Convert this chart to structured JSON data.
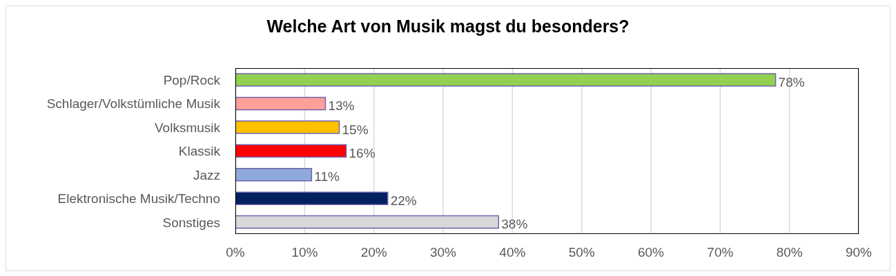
{
  "chart_data": {
    "type": "bar",
    "orientation": "horizontal",
    "title": "Welche Art von Musik magst du besonders?",
    "categories": [
      "Pop/Rock",
      "Schlager/Volkstümliche Musik",
      "Volksmusik",
      "Klassik",
      "Jazz",
      "Elektronische Musik/Techno",
      "Sonstiges"
    ],
    "values": [
      78,
      13,
      15,
      16,
      11,
      22,
      38
    ],
    "colors": [
      "#92d050",
      "#ff9f99",
      "#ffc000",
      "#ff0000",
      "#8eaadb",
      "#002060",
      "#d9d9d9"
    ],
    "value_labels": [
      "78%",
      "13%",
      "15%",
      "16%",
      "11%",
      "22%",
      "38%"
    ],
    "xlim": [
      0,
      90
    ],
    "xticks": [
      {
        "value": 0,
        "label": "0%"
      },
      {
        "value": 10,
        "label": "10%"
      },
      {
        "value": 20,
        "label": "20%"
      },
      {
        "value": 30,
        "label": "30%"
      },
      {
        "value": 40,
        "label": "40%"
      },
      {
        "value": 50,
        "label": "50%"
      },
      {
        "value": 60,
        "label": "60%"
      },
      {
        "value": 70,
        "label": "70%"
      },
      {
        "value": 80,
        "label": "80%"
      },
      {
        "value": 90,
        "label": "90%"
      }
    ],
    "grid": "x"
  }
}
